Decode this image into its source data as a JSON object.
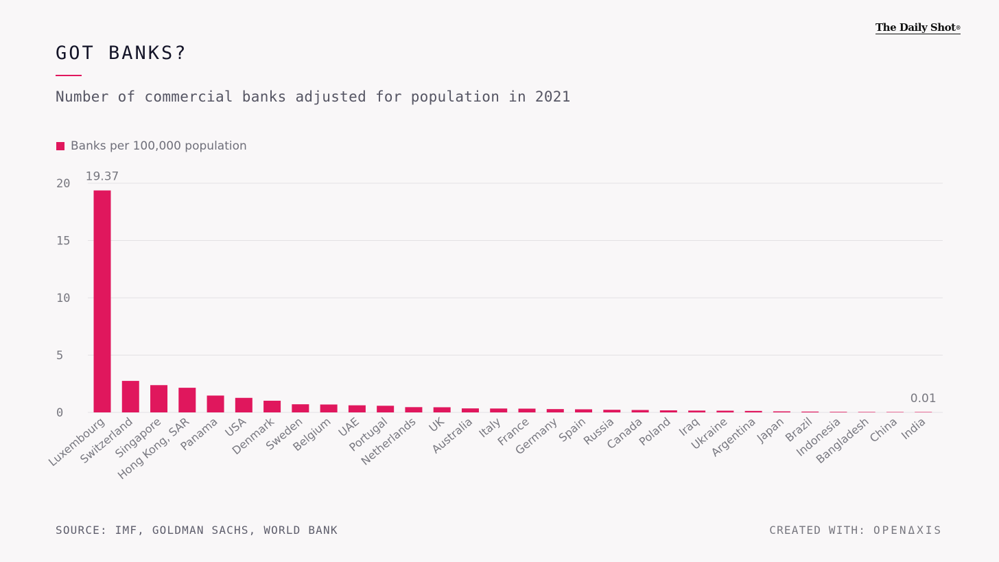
{
  "brand": {
    "name": "The Daily Shot",
    "mark": "®"
  },
  "title": "GOT BANKS?",
  "subtitle": "Number of commercial banks adjusted for population in 2021",
  "legend": {
    "label": "Banks per 100,000 population"
  },
  "colors": {
    "bar": "#e0175d",
    "grid": "#e3e1e4",
    "axis_text": "#77777f"
  },
  "footer": {
    "source": "SOURCE: IMF, GOLDMAN SACHS, WORLD BANK",
    "credit_prefix": "CREATED WITH:",
    "credit_logo": "OPENΔXIS"
  },
  "chart_data": {
    "type": "bar",
    "title": "GOT BANKS?",
    "subtitle": "Number of commercial banks adjusted for population in 2021",
    "xlabel": "",
    "ylabel": "",
    "ylim": [
      0,
      20
    ],
    "yticks": [
      0,
      5,
      10,
      15,
      20
    ],
    "grid": true,
    "legend_position": "top-left",
    "categories": [
      "Luxembourg",
      "Switzerland",
      "Singapore",
      "Hong Kong, SAR",
      "Panama",
      "USA",
      "Denmark",
      "Sweden",
      "Belgium",
      "UAE",
      "Portugal",
      "Netherlands",
      "UK",
      "Australia",
      "Italy",
      "France",
      "Germany",
      "Spain",
      "Russia",
      "Canada",
      "Poland",
      "Iraq",
      "Ukraine",
      "Argentina",
      "Japan",
      "Brazil",
      "Indonesia",
      "Bangladesh",
      "China",
      "India"
    ],
    "series": [
      {
        "name": "Banks per 100,000 population",
        "values": [
          19.37,
          2.75,
          2.38,
          2.15,
          1.47,
          1.27,
          1.02,
          0.71,
          0.69,
          0.62,
          0.58,
          0.46,
          0.45,
          0.35,
          0.34,
          0.33,
          0.29,
          0.27,
          0.23,
          0.21,
          0.18,
          0.16,
          0.15,
          0.13,
          0.09,
          0.07,
          0.05,
          0.04,
          0.01,
          0.01
        ]
      }
    ],
    "data_labels": [
      {
        "category": "Luxembourg",
        "text": "19.37"
      },
      {
        "category": "India",
        "text": "0.01"
      }
    ]
  }
}
